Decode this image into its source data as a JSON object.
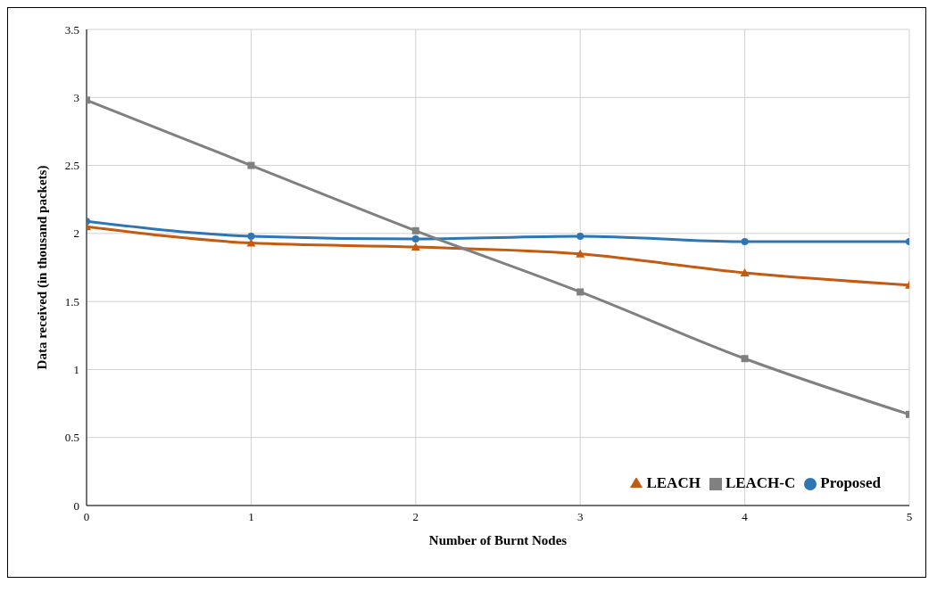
{
  "chart_data": {
    "type": "line",
    "xlabel": "Number of Burnt Nodes",
    "ylabel": "Data received (in thousand packets)",
    "x": [
      0,
      1,
      2,
      3,
      4,
      5
    ],
    "series": [
      {
        "name": "Proposed",
        "color": "#2e75b6",
        "marker": "circle",
        "values": [
          2.09,
          1.98,
          1.96,
          1.98,
          1.94,
          1.94
        ]
      },
      {
        "name": "LEACH",
        "color": "#c55a11",
        "marker": "triangle",
        "values": [
          2.05,
          1.93,
          1.9,
          1.85,
          1.71,
          1.62
        ]
      },
      {
        "name": "LEACH-C",
        "color": "#808080",
        "marker": "square",
        "values": [
          2.98,
          2.5,
          2.02,
          1.57,
          1.08,
          0.67
        ]
      }
    ],
    "xlim": [
      0,
      5
    ],
    "xticks": [
      0,
      1,
      2,
      3,
      4,
      5
    ],
    "ylim": [
      0,
      3.5
    ],
    "yticks": [
      0,
      0.5,
      1,
      1.5,
      2,
      2.5,
      3,
      3.5
    ],
    "grid": true,
    "legend": "bottom right"
  }
}
